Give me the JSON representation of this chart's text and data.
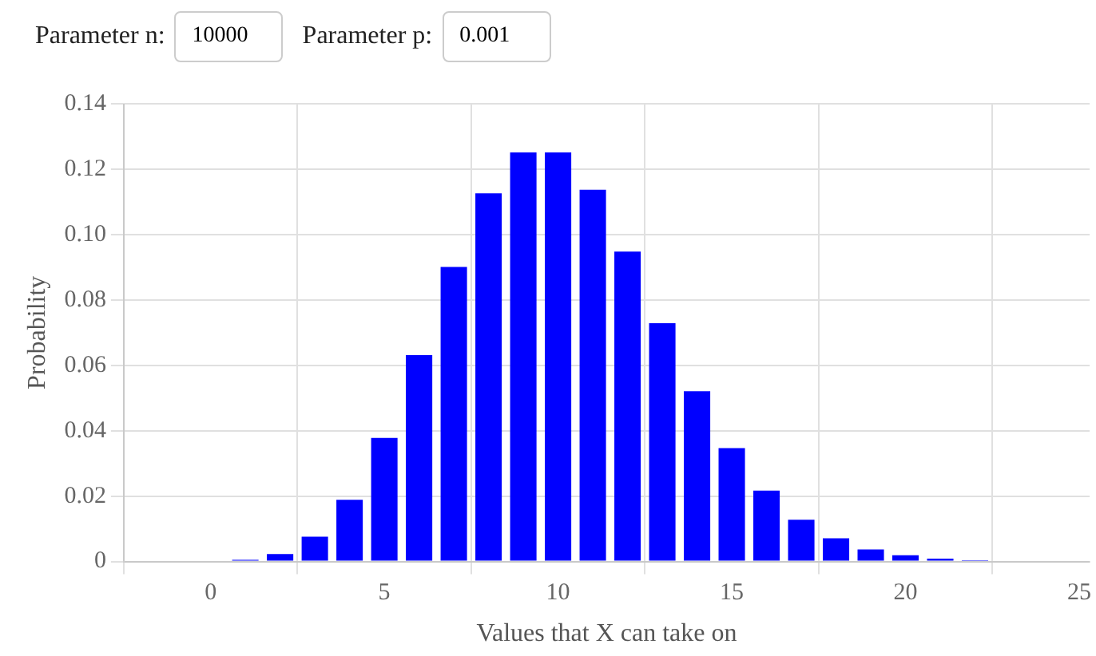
{
  "chart_data": {
    "type": "bar",
    "xlabel": "Values that X can take on",
    "ylabel": "Probability",
    "annotations": [
      "Parameter n:",
      "10000",
      "Parameter p:",
      "0.001"
    ],
    "x": [
      0,
      1,
      2,
      3,
      4,
      5,
      6,
      7,
      8,
      9,
      10,
      11,
      12,
      13,
      14,
      15,
      16,
      17,
      18,
      19,
      20,
      21,
      22,
      23,
      24,
      25
    ],
    "values": [
      0,
      0.0005,
      0.0023,
      0.0076,
      0.0189,
      0.0378,
      0.0631,
      0.0901,
      0.1126,
      0.1251,
      0.1251,
      0.1137,
      0.0948,
      0.0729,
      0.0521,
      0.0347,
      0.0217,
      0.0128,
      0.0071,
      0.0037,
      0.0019,
      0.0009,
      0.0004,
      null,
      null,
      0
    ],
    "color": "#0000ff",
    "xlim": [
      -2.5,
      25.3
    ],
    "xticks": [
      0,
      5,
      10,
      15,
      20,
      25
    ],
    "ylim": [
      0,
      0.14
    ],
    "yticks": [
      0,
      0.02,
      0.04,
      0.06,
      0.08,
      {
        "value": 0.1,
        "label": "0.10"
      },
      0.12,
      0.14
    ],
    "grid": true,
    "legend": false
  }
}
